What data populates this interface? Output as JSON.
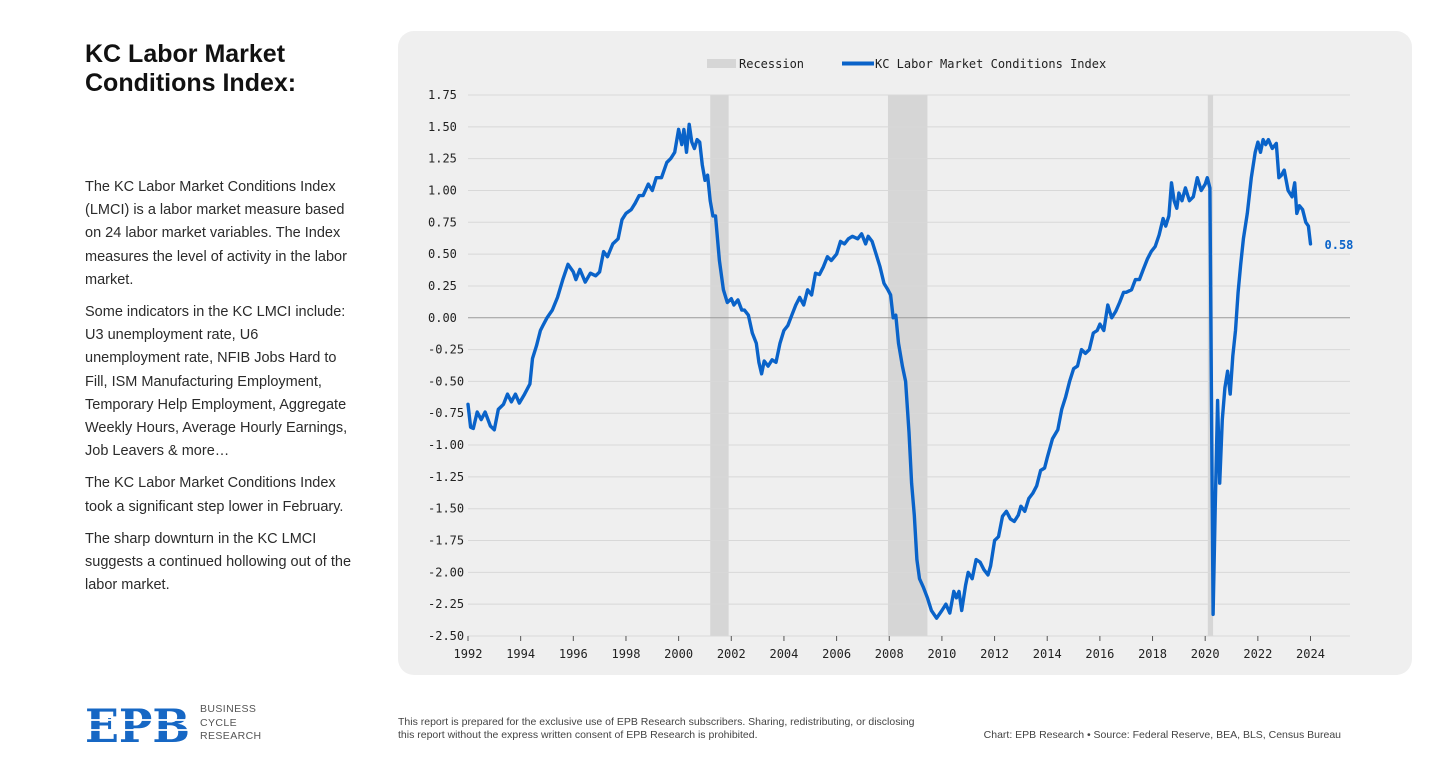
{
  "page": {
    "title": "KC Labor Market Conditions Index:",
    "paragraphs": [
      "The KC Labor Market Conditions Index (LMCI) is a labor market measure based on 24 labor market variables. The Index measures the level of activity in the labor market.",
      "Some indicators in the KC LMCI include: U3 unemployment rate, U6 unemployment rate, NFIB Jobs Hard to Fill, ISM Manufacturing Employment, Temporary Help Employment, Aggregate Weekly Hours, Average Hourly Earnings, Job Leavers & more…",
      "The KC Labor Market Conditions Index took a significant step lower in February.",
      "The sharp downturn in the KC LMCI suggests a continued hollowing out of the labor market."
    ]
  },
  "footer": {
    "logo_text": "EPB",
    "logo_subtitle": [
      "BUSINESS",
      "CYCLE",
      "RESEARCH"
    ],
    "disclaimer": "This report is prepared for the exclusive use of EPB Research subscribers. Sharing, redistributing, or disclosing this report without the express written consent of EPB Research is prohibited.",
    "credit": "Chart: EPB Research  •  Source: Federal Reserve, BEA, BLS, Census Bureau"
  },
  "colors": {
    "line": "#0a63c9",
    "recession": "#d6d6d6",
    "grid": "#d8d8d8",
    "zero_line": "#9a9a9a",
    "logo": "#1667c4"
  },
  "chart_data": {
    "type": "line",
    "title": "",
    "xlabel": "",
    "ylabel": "",
    "xlim": [
      1992,
      2025.5
    ],
    "ylim": [
      -2.5,
      1.75
    ],
    "yticks": [
      "1.75",
      "1.50",
      "1.25",
      "1.00",
      "0.75",
      "0.50",
      "0.25",
      "0.00",
      "-0.25",
      "-0.50",
      "-0.75",
      "-1.00",
      "-1.25",
      "-1.50",
      "-1.75",
      "-2.00",
      "-2.25",
      "-2.50"
    ],
    "xticks": [
      "1992",
      "1994",
      "1996",
      "1998",
      "2000",
      "2002",
      "2004",
      "2006",
      "2008",
      "2010",
      "2012",
      "2014",
      "2016",
      "2018",
      "2020",
      "2022",
      "2024"
    ],
    "legend": [
      "Recession",
      "KC Labor Market Conditions Index"
    ],
    "legend_position": "top-center",
    "recessions": [
      [
        2001.2,
        2001.9
      ],
      [
        2007.95,
        2009.45
      ],
      [
        2020.1,
        2020.3
      ]
    ],
    "last_value_label": "0.58",
    "series": [
      {
        "name": "KC Labor Market Conditions Index",
        "points": [
          [
            1992.0,
            -0.68
          ],
          [
            1992.1,
            -0.86
          ],
          [
            1992.2,
            -0.87
          ],
          [
            1992.35,
            -0.74
          ],
          [
            1992.5,
            -0.8
          ],
          [
            1992.65,
            -0.74
          ],
          [
            1992.85,
            -0.85
          ],
          [
            1993.0,
            -0.88
          ],
          [
            1993.15,
            -0.72
          ],
          [
            1993.35,
            -0.68
          ],
          [
            1993.5,
            -0.6
          ],
          [
            1993.65,
            -0.66
          ],
          [
            1993.8,
            -0.6
          ],
          [
            1993.95,
            -0.67
          ],
          [
            1994.15,
            -0.6
          ],
          [
            1994.35,
            -0.52
          ],
          [
            1994.45,
            -0.32
          ],
          [
            1994.6,
            -0.22
          ],
          [
            1994.75,
            -0.1
          ],
          [
            1994.85,
            -0.06
          ],
          [
            1995.0,
            0.0
          ],
          [
            1995.2,
            0.06
          ],
          [
            1995.4,
            0.16
          ],
          [
            1995.6,
            0.3
          ],
          [
            1995.8,
            0.42
          ],
          [
            1996.0,
            0.36
          ],
          [
            1996.1,
            0.3
          ],
          [
            1996.25,
            0.38
          ],
          [
            1996.45,
            0.28
          ],
          [
            1996.65,
            0.35
          ],
          [
            1996.85,
            0.33
          ],
          [
            1997.0,
            0.36
          ],
          [
            1997.15,
            0.52
          ],
          [
            1997.3,
            0.48
          ],
          [
            1997.5,
            0.58
          ],
          [
            1997.7,
            0.62
          ],
          [
            1997.85,
            0.77
          ],
          [
            1998.0,
            0.82
          ],
          [
            1998.2,
            0.85
          ],
          [
            1998.35,
            0.9
          ],
          [
            1998.5,
            0.96
          ],
          [
            1998.65,
            0.96
          ],
          [
            1998.85,
            1.05
          ],
          [
            1999.0,
            1.0
          ],
          [
            1999.15,
            1.1
          ],
          [
            1999.35,
            1.1
          ],
          [
            1999.55,
            1.22
          ],
          [
            1999.7,
            1.25
          ],
          [
            1999.85,
            1.3
          ],
          [
            2000.0,
            1.48
          ],
          [
            2000.12,
            1.36
          ],
          [
            2000.2,
            1.48
          ],
          [
            2000.3,
            1.3
          ],
          [
            2000.4,
            1.52
          ],
          [
            2000.5,
            1.38
          ],
          [
            2000.6,
            1.33
          ],
          [
            2000.7,
            1.4
          ],
          [
            2000.8,
            1.38
          ],
          [
            2000.9,
            1.2
          ],
          [
            2001.0,
            1.08
          ],
          [
            2001.1,
            1.12
          ],
          [
            2001.2,
            0.92
          ],
          [
            2001.3,
            0.8
          ],
          [
            2001.4,
            0.8
          ],
          [
            2001.55,
            0.45
          ],
          [
            2001.7,
            0.22
          ],
          [
            2001.85,
            0.12
          ],
          [
            2002.0,
            0.15
          ],
          [
            2002.1,
            0.1
          ],
          [
            2002.25,
            0.14
          ],
          [
            2002.4,
            0.06
          ],
          [
            2002.5,
            0.06
          ],
          [
            2002.65,
            0.02
          ],
          [
            2002.8,
            -0.12
          ],
          [
            2002.95,
            -0.2
          ],
          [
            2003.05,
            -0.35
          ],
          [
            2003.15,
            -0.44
          ],
          [
            2003.25,
            -0.34
          ],
          [
            2003.4,
            -0.38
          ],
          [
            2003.55,
            -0.33
          ],
          [
            2003.7,
            -0.35
          ],
          [
            2003.85,
            -0.2
          ],
          [
            2004.0,
            -0.1
          ],
          [
            2004.15,
            -0.06
          ],
          [
            2004.3,
            0.02
          ],
          [
            2004.45,
            0.1
          ],
          [
            2004.6,
            0.16
          ],
          [
            2004.75,
            0.1
          ],
          [
            2004.9,
            0.22
          ],
          [
            2005.05,
            0.18
          ],
          [
            2005.2,
            0.35
          ],
          [
            2005.35,
            0.34
          ],
          [
            2005.5,
            0.4
          ],
          [
            2005.65,
            0.48
          ],
          [
            2005.8,
            0.45
          ],
          [
            2006.0,
            0.5
          ],
          [
            2006.15,
            0.6
          ],
          [
            2006.3,
            0.58
          ],
          [
            2006.45,
            0.62
          ],
          [
            2006.6,
            0.64
          ],
          [
            2006.8,
            0.62
          ],
          [
            2006.95,
            0.66
          ],
          [
            2007.1,
            0.58
          ],
          [
            2007.2,
            0.64
          ],
          [
            2007.35,
            0.6
          ],
          [
            2007.5,
            0.5
          ],
          [
            2007.65,
            0.4
          ],
          [
            2007.8,
            0.27
          ],
          [
            2007.95,
            0.22
          ],
          [
            2008.05,
            0.18
          ],
          [
            2008.15,
            0.0
          ],
          [
            2008.25,
            0.02
          ],
          [
            2008.35,
            -0.2
          ],
          [
            2008.5,
            -0.38
          ],
          [
            2008.62,
            -0.5
          ],
          [
            2008.75,
            -0.9
          ],
          [
            2008.85,
            -1.3
          ],
          [
            2008.95,
            -1.55
          ],
          [
            2009.05,
            -1.9
          ],
          [
            2009.15,
            -2.05
          ],
          [
            2009.3,
            -2.12
          ],
          [
            2009.45,
            -2.2
          ],
          [
            2009.6,
            -2.3
          ],
          [
            2009.8,
            -2.36
          ],
          [
            2010.0,
            -2.3
          ],
          [
            2010.15,
            -2.25
          ],
          [
            2010.3,
            -2.32
          ],
          [
            2010.45,
            -2.15
          ],
          [
            2010.55,
            -2.2
          ],
          [
            2010.65,
            -2.15
          ],
          [
            2010.75,
            -2.3
          ],
          [
            2010.9,
            -2.1
          ],
          [
            2011.0,
            -2.0
          ],
          [
            2011.15,
            -2.05
          ],
          [
            2011.3,
            -1.9
          ],
          [
            2011.45,
            -1.92
          ],
          [
            2011.6,
            -1.98
          ],
          [
            2011.75,
            -2.02
          ],
          [
            2011.85,
            -1.95
          ],
          [
            2012.0,
            -1.75
          ],
          [
            2012.15,
            -1.72
          ],
          [
            2012.3,
            -1.56
          ],
          [
            2012.45,
            -1.52
          ],
          [
            2012.6,
            -1.58
          ],
          [
            2012.75,
            -1.6
          ],
          [
            2012.9,
            -1.55
          ],
          [
            2013.0,
            -1.48
          ],
          [
            2013.15,
            -1.52
          ],
          [
            2013.3,
            -1.42
          ],
          [
            2013.45,
            -1.38
          ],
          [
            2013.6,
            -1.32
          ],
          [
            2013.75,
            -1.2
          ],
          [
            2013.9,
            -1.18
          ],
          [
            2014.0,
            -1.1
          ],
          [
            2014.2,
            -0.95
          ],
          [
            2014.4,
            -0.88
          ],
          [
            2014.55,
            -0.72
          ],
          [
            2014.7,
            -0.62
          ],
          [
            2014.85,
            -0.5
          ],
          [
            2015.0,
            -0.4
          ],
          [
            2015.15,
            -0.38
          ],
          [
            2015.3,
            -0.25
          ],
          [
            2015.45,
            -0.28
          ],
          [
            2015.6,
            -0.25
          ],
          [
            2015.75,
            -0.12
          ],
          [
            2015.9,
            -0.1
          ],
          [
            2016.0,
            -0.05
          ],
          [
            2016.15,
            -0.1
          ],
          [
            2016.3,
            0.1
          ],
          [
            2016.45,
            0.0
          ],
          [
            2016.6,
            0.05
          ],
          [
            2016.75,
            0.12
          ],
          [
            2016.9,
            0.2
          ],
          [
            2017.0,
            0.2
          ],
          [
            2017.2,
            0.22
          ],
          [
            2017.35,
            0.3
          ],
          [
            2017.5,
            0.3
          ],
          [
            2017.65,
            0.38
          ],
          [
            2017.8,
            0.46
          ],
          [
            2017.95,
            0.52
          ],
          [
            2018.1,
            0.56
          ],
          [
            2018.25,
            0.65
          ],
          [
            2018.4,
            0.78
          ],
          [
            2018.5,
            0.72
          ],
          [
            2018.62,
            0.8
          ],
          [
            2018.72,
            1.06
          ],
          [
            2018.82,
            0.92
          ],
          [
            2018.92,
            0.86
          ],
          [
            2019.0,
            0.98
          ],
          [
            2019.12,
            0.92
          ],
          [
            2019.25,
            1.02
          ],
          [
            2019.4,
            0.92
          ],
          [
            2019.55,
            0.95
          ],
          [
            2019.7,
            1.1
          ],
          [
            2019.85,
            1.0
          ],
          [
            2020.0,
            1.05
          ],
          [
            2020.08,
            1.1
          ],
          [
            2020.18,
            1.02
          ],
          [
            2020.25,
            -1.0
          ],
          [
            2020.3,
            -2.33
          ],
          [
            2020.38,
            -1.5
          ],
          [
            2020.47,
            -0.65
          ],
          [
            2020.55,
            -1.3
          ],
          [
            2020.65,
            -0.8
          ],
          [
            2020.75,
            -0.55
          ],
          [
            2020.85,
            -0.42
          ],
          [
            2020.95,
            -0.6
          ],
          [
            2021.05,
            -0.3
          ],
          [
            2021.15,
            -0.1
          ],
          [
            2021.25,
            0.2
          ],
          [
            2021.35,
            0.42
          ],
          [
            2021.45,
            0.62
          ],
          [
            2021.6,
            0.82
          ],
          [
            2021.75,
            1.1
          ],
          [
            2021.9,
            1.3
          ],
          [
            2022.0,
            1.38
          ],
          [
            2022.1,
            1.3
          ],
          [
            2022.2,
            1.4
          ],
          [
            2022.3,
            1.36
          ],
          [
            2022.4,
            1.4
          ],
          [
            2022.55,
            1.33
          ],
          [
            2022.7,
            1.37
          ],
          [
            2022.8,
            1.1
          ],
          [
            2022.9,
            1.12
          ],
          [
            2023.0,
            1.16
          ],
          [
            2023.15,
            1.0
          ],
          [
            2023.3,
            0.95
          ],
          [
            2023.4,
            1.06
          ],
          [
            2023.48,
            0.82
          ],
          [
            2023.58,
            0.88
          ],
          [
            2023.7,
            0.85
          ],
          [
            2023.82,
            0.75
          ],
          [
            2023.92,
            0.72
          ],
          [
            2024.0,
            0.58
          ]
        ]
      }
    ]
  }
}
